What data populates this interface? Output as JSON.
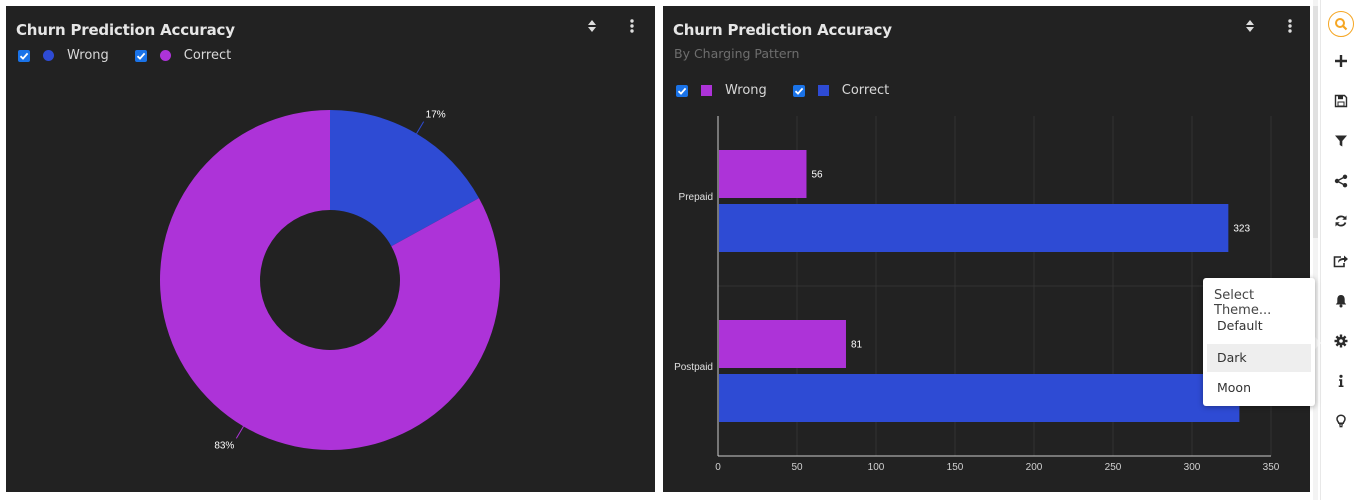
{
  "left_panel": {
    "title": "Churn Prediction Accuracy",
    "legend": [
      {
        "label": "Wrong",
        "color": "#2e4bd4",
        "checked": true
      },
      {
        "label": "Correct",
        "color": "#ad33d8",
        "checked": true
      }
    ]
  },
  "right_panel": {
    "title": "Churn Prediction Accuracy",
    "subtitle": "By Charging Pattern",
    "legend": [
      {
        "label": "Wrong",
        "color": "#ad33d8",
        "checked": true
      },
      {
        "label": "Correct",
        "color": "#2e4bd4",
        "checked": true
      }
    ]
  },
  "chart_data": [
    {
      "type": "pie",
      "donut": true,
      "slices": [
        {
          "name": "Wrong",
          "value": 17,
          "label": "17%",
          "color": "#2e4bd4"
        },
        {
          "name": "Correct",
          "value": 83,
          "label": "83%",
          "color": "#ad33d8"
        }
      ]
    },
    {
      "type": "bar",
      "orientation": "horizontal",
      "categories": [
        "Prepaid",
        "Postpaid"
      ],
      "series": [
        {
          "name": "Wrong",
          "color": "#ad33d8",
          "values": [
            56,
            81
          ],
          "labels": [
            "56",
            "81"
          ]
        },
        {
          "name": "Correct",
          "color": "#2e4bd4",
          "values": [
            323,
            330
          ],
          "labels": [
            "323",
            ""
          ]
        }
      ],
      "xlim": [
        0,
        350
      ],
      "xticks": [
        "0",
        "50",
        "100",
        "150",
        "200",
        "250",
        "300",
        "350"
      ],
      "grid": true
    }
  ],
  "theme_menu": {
    "title": "Select Theme...",
    "items": [
      "Default",
      "Dark",
      "Moon"
    ],
    "highlighted": "Dark"
  },
  "toolbar": {
    "icons": [
      "search-icon",
      "add-icon",
      "save-icon",
      "filter-icon",
      "share-icon",
      "refresh-icon",
      "export-icon",
      "bell-icon",
      "settings-icon",
      "info-icon",
      "lightbulb-icon"
    ],
    "accent": "#f5a623"
  }
}
